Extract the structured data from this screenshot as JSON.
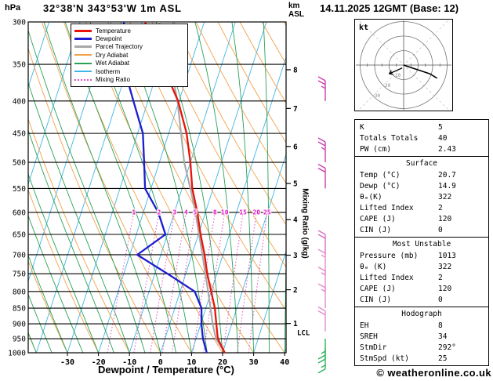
{
  "header": {
    "pressure_unit": "hPa",
    "station": "32°38'N 343°53'W 1m ASL",
    "datetime": "14.11.2025 12GMT (Base: 12)",
    "km_label": "km",
    "asl_label": "ASL"
  },
  "axes": {
    "xlabel": "Dewpoint / Temperature (°C)",
    "right_label": "Mixing Ratio (g/kg)",
    "pressure_ticks_hpa": [
      300,
      350,
      400,
      450,
      500,
      550,
      600,
      650,
      700,
      750,
      800,
      850,
      900,
      950,
      1000
    ],
    "temp_ticks_c": [
      -30,
      -20,
      -10,
      0,
      10,
      20,
      30,
      40
    ],
    "km_ticks": [
      {
        "km": 1,
        "p_hpa": 899
      },
      {
        "km": 2,
        "p_hpa": 795
      },
      {
        "km": 3,
        "p_hpa": 701
      },
      {
        "km": 4,
        "p_hpa": 616
      },
      {
        "km": 5,
        "p_hpa": 540
      },
      {
        "km": 6,
        "p_hpa": 472
      },
      {
        "km": 7,
        "p_hpa": 411
      },
      {
        "km": 8,
        "p_hpa": 357
      }
    ],
    "lcl": {
      "label": "LCL",
      "p_hpa": 930
    }
  },
  "legend": {
    "items": [
      {
        "label": "Temperature",
        "color": "#e81309",
        "thick": true,
        "dotted": false
      },
      {
        "label": "Dewpoint",
        "color": "#1c1cd0",
        "thick": true,
        "dotted": false
      },
      {
        "label": "Parcel Trajectory",
        "color": "#a8a8a8",
        "thick": true,
        "dotted": false
      },
      {
        "label": "Dry Adiabat",
        "color": "#f2a24a",
        "thick": false,
        "dotted": false
      },
      {
        "label": "Wet Adiabat",
        "color": "#2aa158",
        "thick": false,
        "dotted": false
      },
      {
        "label": "Isotherm",
        "color": "#41b6e6",
        "thick": false,
        "dotted": false
      },
      {
        "label": "Mixing Ratio",
        "color": "#e04fc4",
        "thick": false,
        "dotted": true
      }
    ]
  },
  "chart_data": {
    "type": "line",
    "subtype": "skew-t_log-p_sounding",
    "title": "32°38'N 343°53'W 1m ASL  14.11.2025 12GMT (Base: 12)",
    "xlabel": "Dewpoint / Temperature (°C)",
    "ylabel": "hPa",
    "x_ticks_c": [
      -30,
      -20,
      -10,
      0,
      10,
      20,
      30,
      40
    ],
    "pressure_range_hpa": [
      300,
      1000
    ],
    "pressure_levels_hpa": [
      1000,
      950,
      900,
      850,
      800,
      750,
      700,
      650,
      600,
      550,
      500,
      450,
      400,
      350,
      300
    ],
    "series": [
      {
        "name": "Temperature",
        "unit": "°C",
        "color": "#e81309",
        "values": [
          20.7,
          17.0,
          15.0,
          12.9,
          10.0,
          6.9,
          4.1,
          0.7,
          -2.6,
          -6.7,
          -10.0,
          -14.2,
          -20.3,
          -29.2,
          -39.1
        ]
      },
      {
        "name": "Dewpoint",
        "unit": "°C",
        "color": "#1c1cd0",
        "values": [
          14.9,
          12.2,
          10.2,
          8.6,
          4.7,
          -5.9,
          -17.6,
          -10.6,
          -15.2,
          -21.9,
          -24.9,
          -28.3,
          -34.7,
          -41.8,
          -45.9
        ]
      },
      {
        "name": "Parcel Trajectory",
        "unit": "°C",
        "color": "#a8a8a8",
        "values": [
          20.7,
          16.4,
          13.8,
          11.5,
          9.0,
          6.3,
          3.4,
          0.2,
          -3.2,
          -7.3,
          -12.0,
          -16.0,
          -20.5,
          -26.5,
          -34.5
        ]
      }
    ],
    "isotherm_step_c": 10,
    "dry_adiabat_step_c": 10,
    "wet_adiabat_step_c": 5,
    "mixing_ratio_lines_gkg": [
      1,
      2,
      3,
      4,
      5,
      8,
      10,
      15,
      20,
      25
    ],
    "mixing_ratio_label_p_hpa": 600,
    "wind_barbs": [
      {
        "p_hpa": 400,
        "speed_kt": 25,
        "color": "#cc3fae",
        "down": false
      },
      {
        "p_hpa": 500,
        "speed_kt": 25,
        "color": "#cc3fae",
        "down": false
      },
      {
        "p_hpa": 550,
        "speed_kt": 20,
        "color": "#cc3fae",
        "down": false
      },
      {
        "p_hpa": 700,
        "speed_kt": 20,
        "color": "#d86ec0",
        "down": false
      },
      {
        "p_hpa": 750,
        "speed_kt": 15,
        "color": "#e48ccd",
        "down": false
      },
      {
        "p_hpa": 800,
        "speed_kt": 15,
        "color": "#e48ccd",
        "down": false
      },
      {
        "p_hpa": 850,
        "speed_kt": 15,
        "color": "#e48ccd",
        "down": false
      },
      {
        "p_hpa": 925,
        "speed_kt": 20,
        "color": "#e48ccd",
        "down": false
      },
      {
        "p_hpa": 950,
        "speed_kt": 25,
        "color": "#2db35a",
        "down": true
      },
      {
        "p_hpa": 985,
        "speed_kt": 15,
        "color": "#2db35a",
        "down": true
      }
    ]
  },
  "hodograph": {
    "unit_label": "kt",
    "rings_kt": [
      10,
      20,
      30
    ],
    "trace_uv_kt": [
      [
        0,
        0
      ],
      [
        6,
        -2
      ],
      [
        12,
        -4
      ],
      [
        18,
        -6
      ],
      [
        23,
        -9
      ]
    ],
    "storm_arrow_uv_kt": [
      [
        -1,
        -2
      ],
      [
        -10,
        -6
      ]
    ],
    "storm_motion": {
      "dir_deg": 292,
      "speed_kt": 25
    }
  },
  "table": {
    "top_rows": [
      {
        "label": "K",
        "value": "5"
      },
      {
        "label": "Totals Totals",
        "value": "40"
      },
      {
        "label": "PW (cm)",
        "value": "2.43"
      }
    ],
    "sections": [
      {
        "title": "Surface",
        "rows": [
          {
            "label": "Temp (°C)",
            "value": "20.7"
          },
          {
            "label": "Dewp (°C)",
            "value": "14.9"
          },
          {
            "label": "θₑ(K)",
            "value": "322"
          },
          {
            "label": "Lifted Index",
            "value": "2"
          },
          {
            "label": "CAPE (J)",
            "value": "120"
          },
          {
            "label": "CIN (J)",
            "value": "0"
          }
        ]
      },
      {
        "title": "Most Unstable",
        "rows": [
          {
            "label": "Pressure (mb)",
            "value": "1013"
          },
          {
            "label": "θₑ (K)",
            "value": "322"
          },
          {
            "label": "Lifted Index",
            "value": "2"
          },
          {
            "label": "CAPE (J)",
            "value": "120"
          },
          {
            "label": "CIN (J)",
            "value": "0"
          }
        ]
      },
      {
        "title": "Hodograph",
        "rows": [
          {
            "label": "EH",
            "value": "8"
          },
          {
            "label": "SREH",
            "value": "34"
          },
          {
            "label": "StmDir",
            "value": "292°"
          },
          {
            "label": "StmSpd (kt)",
            "value": "25"
          }
        ]
      }
    ]
  },
  "footer": {
    "copyright": "© weatheronline.co.uk"
  }
}
